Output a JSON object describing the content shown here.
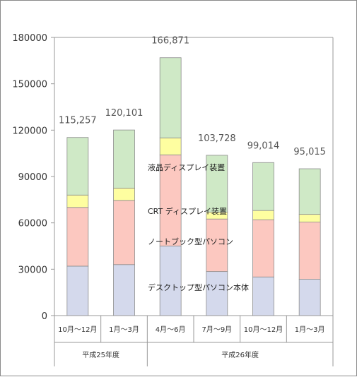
{
  "chart_data": {
    "type": "bar",
    "stacked": true,
    "categories": [
      "10月～12月",
      "1月～3月",
      "4月～6月",
      "7月～9月",
      "10月～12月",
      "1月～3月"
    ],
    "category_colors": [
      "#333333",
      "#333333",
      "#333333",
      "#333333",
      "#333333",
      "#e8191c"
    ],
    "groups": [
      {
        "label": "平成25年度",
        "span": [
          0,
          1
        ]
      },
      {
        "label": "平成26年度",
        "span": [
          2,
          5
        ]
      }
    ],
    "series": [
      {
        "name": "デスクトップ型パソコン本体",
        "color": "#d4d9ec",
        "values": [
          32000,
          33000,
          45000,
          28500,
          25000,
          23500
        ]
      },
      {
        "name": "ノートブック型パソコン",
        "color": "#fcc8c0",
        "values": [
          38000,
          41500,
          59000,
          34000,
          37000,
          37000
        ]
      },
      {
        "name": "CRT ディスプレイ装置",
        "color": "#fefea0",
        "values": [
          8000,
          8000,
          11000,
          4500,
          6000,
          5000
        ]
      },
      {
        "name": "液晶ディスプレイ装置",
        "color": "#cfe9c6",
        "values": [
          37257,
          37601,
          51871,
          36728,
          31014,
          29515
        ]
      }
    ],
    "totals": [
      "115,257",
      "120,101",
      "166,871",
      "103,728",
      "99,014",
      "95,015"
    ],
    "total_colors": [
      "#555555",
      "#555555",
      "#555555",
      "#555555",
      "#555555",
      "#e8191c"
    ],
    "ylim": [
      0,
      180000
    ],
    "yticks": [
      "0",
      "30000",
      "60000",
      "90000",
      "120000",
      "150000",
      "180000"
    ],
    "title": "",
    "xlabel": "",
    "ylabel": "",
    "grid": false,
    "legend": "inline annotations"
  }
}
